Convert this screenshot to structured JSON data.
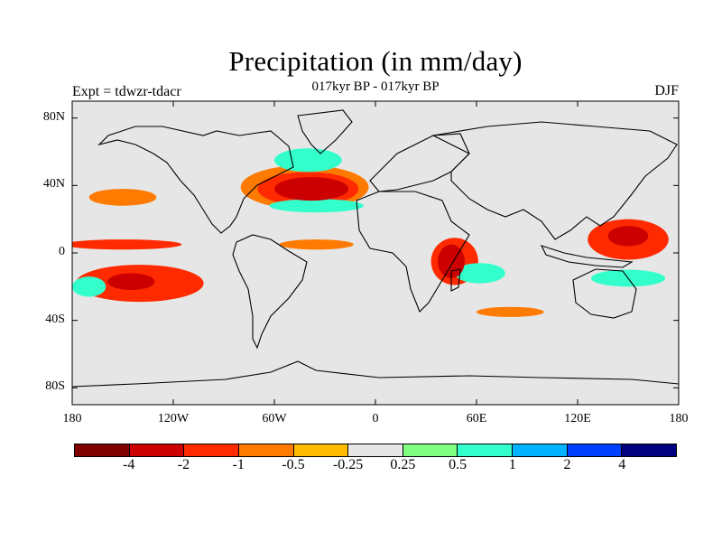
{
  "title": "Precipitation (in mm/day)",
  "subtitle": "017kyr BP - 017kyr BP",
  "experiment": "Expt = tdwzr-tdacr",
  "season": "DJF",
  "map": {
    "projection": "cylindrical-equidistant",
    "land_color": "#e6e6e6",
    "lat_labels": [
      "80N",
      "40N",
      "0",
      "40S",
      "80S"
    ],
    "lon_labels": [
      "180",
      "120W",
      "60W",
      "0",
      "60E",
      "120E",
      "180"
    ]
  },
  "colorbar": {
    "colors": [
      "#800000",
      "#cc0000",
      "#ff2a00",
      "#ff7a00",
      "#ffbb00",
      "#e6e6e6",
      "#80ff80",
      "#33ffcc",
      "#00b2ff",
      "#0040ff",
      "#000080"
    ],
    "labels": [
      "-4",
      "-2",
      "-1",
      "-0.5",
      "-0.25",
      "0.25",
      "0.5",
      "1",
      "2",
      "4"
    ]
  },
  "anomalies": [
    {
      "name": "north-atlantic-wet",
      "level": -2,
      "lon": -38,
      "lat": 38,
      "rx": 22,
      "ry": 7
    },
    {
      "name": "north-atlantic-mid",
      "level": -1,
      "lon": -40,
      "lat": 38,
      "rx": 30,
      "ry": 10
    },
    {
      "name": "north-atlantic-outer",
      "level": -0.5,
      "lon": -42,
      "lat": 39,
      "rx": 38,
      "ry": 13
    },
    {
      "name": "subpolar-atlantic-blue",
      "level": 1,
      "lon": -40,
      "lat": 55,
      "rx": 20,
      "ry": 7
    },
    {
      "name": "tropical-atlantic-blue",
      "level": 1,
      "lon": -35,
      "lat": 28,
      "rx": 28,
      "ry": 4
    },
    {
      "name": "pacific-sw-core",
      "level": -2,
      "lon": -145,
      "lat": -17,
      "rx": 14,
      "ry": 5
    },
    {
      "name": "pacific-sw-outer",
      "level": -1,
      "lon": -140,
      "lat": -18,
      "rx": 38,
      "ry": 11
    },
    {
      "name": "pacific-sw-blue",
      "level": 1,
      "lon": -170,
      "lat": -20,
      "rx": 10,
      "ry": 6
    },
    {
      "name": "pacific-equatorial",
      "level": -1,
      "lon": -150,
      "lat": 5,
      "rx": 35,
      "ry": 3
    },
    {
      "name": "pacific-north",
      "level": -0.5,
      "lon": -150,
      "lat": 33,
      "rx": 20,
      "ry": 5
    },
    {
      "name": "atlantic-equatorial",
      "level": -0.5,
      "lon": -35,
      "lat": 5,
      "rx": 22,
      "ry": 3
    },
    {
      "name": "madagascar-core",
      "level": -2,
      "lon": 45,
      "lat": -5,
      "rx": 8,
      "ry": 10
    },
    {
      "name": "madagascar-outer",
      "level": -1,
      "lon": 47,
      "lat": -5,
      "rx": 14,
      "ry": 14
    },
    {
      "name": "indian-blue",
      "level": 1,
      "lon": 62,
      "lat": -12,
      "rx": 15,
      "ry": 6
    },
    {
      "name": "west-pacific-core",
      "level": -2,
      "lon": 150,
      "lat": 10,
      "rx": 12,
      "ry": 6
    },
    {
      "name": "west-pacific-outer",
      "level": -1,
      "lon": 150,
      "lat": 8,
      "rx": 24,
      "ry": 12
    },
    {
      "name": "west-pacific-blue",
      "level": 1,
      "lon": 150,
      "lat": -15,
      "rx": 22,
      "ry": 5
    },
    {
      "name": "southern-ocean",
      "level": -0.5,
      "lon": 80,
      "lat": -35,
      "rx": 20,
      "ry": 3
    }
  ]
}
